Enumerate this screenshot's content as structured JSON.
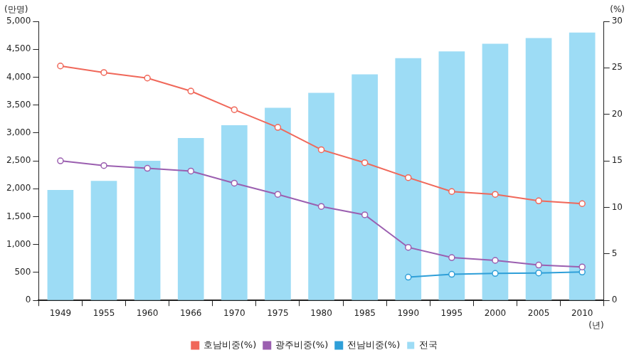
{
  "chart_data": {
    "type": "bar",
    "categories": [
      "1949",
      "1955",
      "1960",
      "1966",
      "1970",
      "1975",
      "1980",
      "1985",
      "1990",
      "1995",
      "2000",
      "2005",
      "2010"
    ],
    "x_label": "(년)",
    "y_label": "(만명)",
    "y2_label": "(%)",
    "ylim": [
      0,
      5000
    ],
    "yticks": [
      0,
      500,
      {
        "value": 1000,
        "label": "1,000"
      },
      {
        "value": 1500,
        "label": "1,500"
      },
      {
        "value": 2000,
        "label": "2,000"
      },
      {
        "value": 2500,
        "label": "2,500"
      },
      {
        "value": 3000,
        "label": "3,000"
      },
      {
        "value": 3500,
        "label": "3,500"
      },
      {
        "value": 4000,
        "label": "4,000"
      },
      {
        "value": 4500,
        "label": "4,500"
      },
      {
        "value": 5000,
        "label": "5,000"
      }
    ],
    "y2lim": [
      0,
      30
    ],
    "y2ticks": [
      0,
      5,
      10,
      15,
      20,
      25,
      30
    ],
    "grid": false,
    "legend": "bottom",
    "series": [
      {
        "name": "전국",
        "type": "bar",
        "color": "#9ddcf5",
        "values": [
          1980,
          2140,
          2500,
          2910,
          3140,
          3450,
          3720,
          4050,
          4340,
          4460,
          4600,
          4700,
          4800
        ]
      },
      {
        "name": "호남비중(%)",
        "type": "line",
        "axis": "y2",
        "color": "#f0685a",
        "marker": "circle",
        "values": [
          25.2,
          24.5,
          23.9,
          22.5,
          20.5,
          18.6,
          16.2,
          14.8,
          13.2,
          11.7,
          11.4,
          10.7,
          10.4
        ]
      },
      {
        "name": "광주비중(%)",
        "type": "line",
        "axis": "y2",
        "color": "#9b5fb0",
        "marker": "circle",
        "values": [
          15.0,
          14.5,
          14.2,
          13.9,
          12.6,
          11.4,
          10.1,
          9.2,
          5.7,
          4.6,
          4.3,
          3.8,
          3.6
        ]
      },
      {
        "name": "전남비중(%)",
        "type": "line",
        "axis": "y2",
        "color": "#2f9fd8",
        "marker": "circle",
        "values": [
          null,
          null,
          null,
          null,
          null,
          null,
          null,
          null,
          2.5,
          2.8,
          2.9,
          2.95,
          3.05
        ]
      }
    ]
  }
}
